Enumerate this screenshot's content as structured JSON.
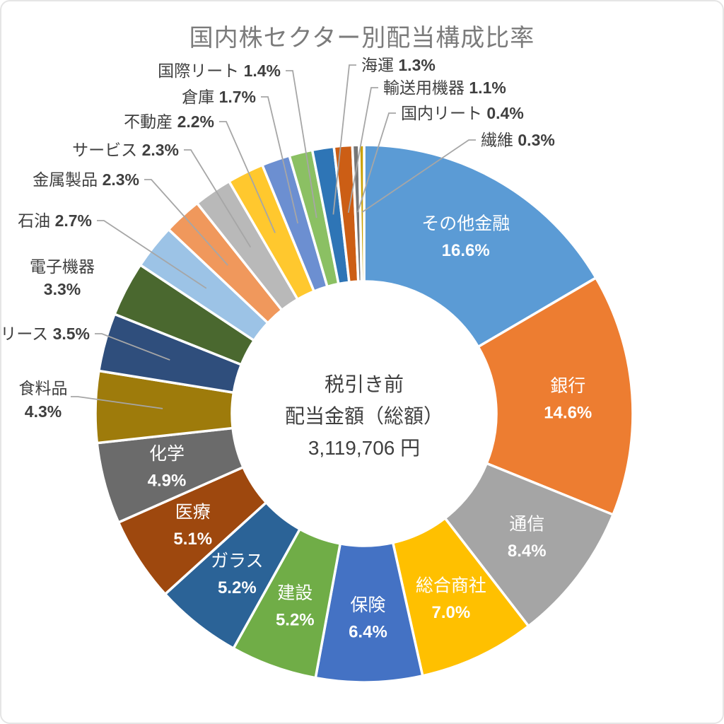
{
  "chart_data": {
    "type": "pie",
    "subtype": "donut",
    "title": "国内株セクター別配当構成比率",
    "legend_position": "none",
    "data_labels": "category-and-percent",
    "center_label": {
      "line1": "税引き前",
      "line2": "配当金額（総額）",
      "line3": "3,119,706 円"
    },
    "segments": [
      {
        "label": "その他金融",
        "value": 16.6,
        "color": "#5B9BD5",
        "label_placement": "inside"
      },
      {
        "label": "銀行",
        "value": 14.6,
        "color": "#ED7D31",
        "label_placement": "inside"
      },
      {
        "label": "通信",
        "value": 8.4,
        "color": "#A5A5A5",
        "label_placement": "inside"
      },
      {
        "label": "総合商社",
        "value": 7.0,
        "color": "#FFC000",
        "label_placement": "inside"
      },
      {
        "label": "保険",
        "value": 6.4,
        "color": "#4472C4",
        "label_placement": "inside"
      },
      {
        "label": "建設",
        "value": 5.2,
        "color": "#70AD47",
        "label_placement": "inside"
      },
      {
        "label": "ガラス",
        "value": 5.2,
        "color": "#2B6397",
        "label_placement": "inside"
      },
      {
        "label": "医療",
        "value": 5.1,
        "color": "#9E480E",
        "label_placement": "inside"
      },
      {
        "label": "化学",
        "value": 4.9,
        "color": "#6B6B6B",
        "label_placement": "inside"
      },
      {
        "label": "食料品",
        "value": 4.3,
        "color": "#9E7B0B",
        "label_placement": "outside"
      },
      {
        "label": "リース",
        "value": 3.5,
        "color": "#2F4E7C",
        "label_placement": "outside"
      },
      {
        "label": "電子機器",
        "value": 3.3,
        "color": "#4A682F",
        "label_placement": "outside"
      },
      {
        "label": "石油",
        "value": 2.7,
        "color": "#9CC3E6",
        "label_placement": "outside"
      },
      {
        "label": "金属製品",
        "value": 2.3,
        "color": "#F0985C",
        "label_placement": "outside"
      },
      {
        "label": "サービス",
        "value": 2.3,
        "color": "#B9B9B9",
        "label_placement": "outside"
      },
      {
        "label": "不動産",
        "value": 2.2,
        "color": "#FFC82E",
        "label_placement": "outside"
      },
      {
        "label": "倉庫",
        "value": 1.7,
        "color": "#6C8FD1",
        "label_placement": "outside"
      },
      {
        "label": "国際リート",
        "value": 1.4,
        "color": "#8BC063",
        "label_placement": "outside"
      },
      {
        "label": "海運",
        "value": 1.3,
        "color": "#2E75B6",
        "label_placement": "outside"
      },
      {
        "label": "輸送用機器",
        "value": 1.1,
        "color": "#CC5E15",
        "label_placement": "outside"
      },
      {
        "label": "国内リート",
        "value": 0.4,
        "color": "#767676",
        "label_placement": "outside"
      },
      {
        "label": "繊維",
        "value": 0.3,
        "color": "#C9A000",
        "label_placement": "outside"
      }
    ],
    "styles": {
      "title_color": "#7B7B7B",
      "inside_label_color": "#FFFFFF",
      "outside_label_color": "#3F3F3F",
      "center_text_color": "#3F3F3F",
      "leader_line_color": "#A6A6A6",
      "slice_border_color": "#FFFFFF",
      "frame_border_color": "#E5E5E5",
      "background": "#FFFFFF"
    }
  }
}
